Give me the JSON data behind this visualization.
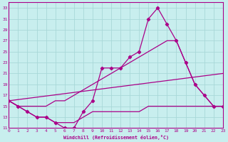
{
  "xlabel": "Windchill (Refroidissement éolien,°C)",
  "bg_color": "#c8eeee",
  "grid_color": "#a8d8d8",
  "line_color": "#aa0088",
  "xmin": 0,
  "xmax": 23,
  "ymin": 11,
  "ymax": 34,
  "yticks": [
    11,
    13,
    15,
    17,
    19,
    21,
    23,
    25,
    27,
    29,
    31,
    33
  ],
  "xticks": [
    0,
    1,
    2,
    3,
    4,
    5,
    6,
    7,
    8,
    9,
    10,
    11,
    12,
    13,
    14,
    15,
    16,
    17,
    18,
    19,
    20,
    21,
    22,
    23
  ],
  "line1_x": [
    0,
    1,
    2,
    3,
    4,
    5,
    6,
    7,
    8,
    9,
    10,
    11,
    12,
    13,
    14,
    15,
    16,
    17,
    18,
    19,
    20,
    21,
    22,
    23
  ],
  "line1_y": [
    16,
    15,
    14,
    13,
    13,
    12,
    11,
    11,
    14,
    16,
    22,
    22,
    22,
    24,
    25,
    31,
    33,
    30,
    27,
    23,
    19,
    17,
    15,
    15
  ],
  "line2_x": [
    0,
    1,
    2,
    3,
    4,
    5,
    6,
    7,
    8,
    9,
    10,
    11,
    12,
    13,
    14,
    15,
    16,
    17,
    18,
    19,
    20,
    21,
    22,
    23
  ],
  "line2_y": [
    16,
    15,
    15,
    15,
    15,
    16,
    16,
    17,
    18,
    19,
    20,
    21,
    22,
    23,
    24,
    25,
    26,
    27,
    27,
    23,
    19,
    17,
    15,
    15
  ],
  "line3_x": [
    0,
    1,
    2,
    3,
    4,
    5,
    6,
    7,
    8,
    9,
    10,
    11,
    12,
    13,
    14,
    15,
    16,
    17,
    18,
    19,
    20,
    21,
    22,
    23
  ],
  "line3_y": [
    16,
    15,
    14,
    13,
    13,
    12,
    12,
    12,
    13,
    14,
    14,
    14,
    14,
    14,
    14,
    15,
    15,
    15,
    15,
    15,
    15,
    15,
    15,
    15
  ],
  "line4_x": [
    0,
    23
  ],
  "line4_y": [
    16,
    21
  ]
}
